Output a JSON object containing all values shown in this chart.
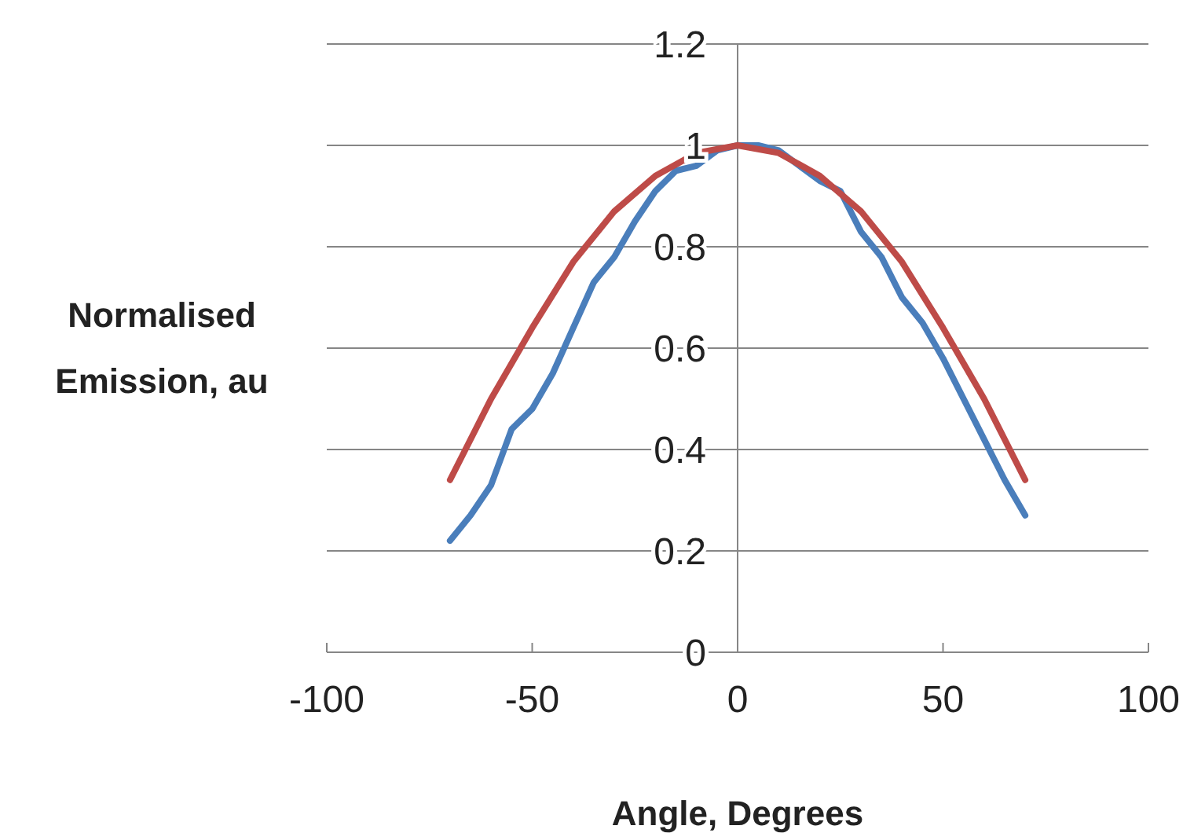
{
  "chart_data": {
    "type": "line",
    "xlabel": "Angle, Degrees",
    "ylabel": "Normalised\nEmission, au",
    "xlim": [
      -100,
      100
    ],
    "xticks": [
      -100,
      -50,
      0,
      50,
      100
    ],
    "ylim": [
      0,
      1.2
    ],
    "yticks": [
      0,
      0.2,
      0.4,
      0.6,
      0.8,
      1,
      1.2
    ],
    "grid": "y",
    "marker": "none",
    "line_style": "solid",
    "series": [
      {
        "color": "#4a7ebb",
        "x": [
          -70,
          -65,
          -60,
          -55,
          -50,
          -45,
          -40,
          -35,
          -30,
          -25,
          -20,
          -15,
          -10,
          -5,
          0,
          5,
          10,
          15,
          20,
          25,
          30,
          35,
          40,
          45,
          50,
          55,
          60,
          65,
          70
        ],
        "values": [
          0.22,
          0.27,
          0.33,
          0.44,
          0.48,
          0.55,
          0.64,
          0.73,
          0.78,
          0.85,
          0.91,
          0.95,
          0.96,
          0.99,
          1,
          1,
          0.99,
          0.96,
          0.93,
          0.91,
          0.83,
          0.78,
          0.7,
          0.65,
          0.58,
          0.5,
          0.42,
          0.34,
          0.27
        ]
      },
      {
        "color": "#be4b48",
        "x": [
          -70,
          -60,
          -50,
          -40,
          -30,
          -20,
          -10,
          0,
          10,
          20,
          30,
          40,
          50,
          60,
          70
        ],
        "values": [
          0.34,
          0.5,
          0.64,
          0.77,
          0.87,
          0.94,
          0.985,
          1,
          0.985,
          0.94,
          0.87,
          0.77,
          0.64,
          0.5,
          0.34
        ]
      }
    ]
  }
}
